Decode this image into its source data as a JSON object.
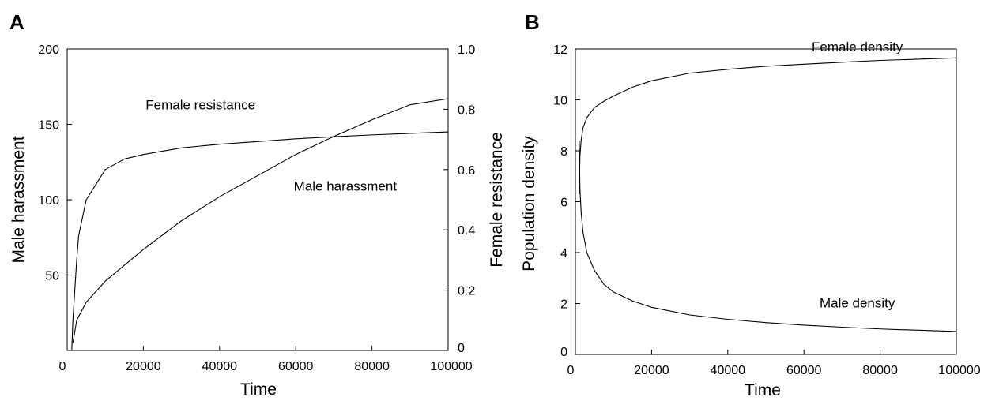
{
  "chart_data": [
    {
      "panel": "A",
      "type": "line",
      "xlabel": "Time",
      "ylabel": "Male harassment",
      "ylabel_right": "Female resistance",
      "xlim": [
        0,
        100000
      ],
      "ylim": [
        0,
        200
      ],
      "ylim_right": [
        0,
        1.0
      ],
      "x_ticks": [
        0,
        20000,
        40000,
        60000,
        80000,
        100000
      ],
      "y_ticks": [
        50,
        100,
        150,
        200
      ],
      "y_ticks_right": [
        0,
        0.2,
        0.4,
        0.6,
        0.8,
        1.0
      ],
      "x_tick_labels": [
        "0",
        "20000",
        "40000",
        "60000",
        "80000",
        "100000"
      ],
      "y_tick_labels": [
        "50",
        "100",
        "150",
        "200"
      ],
      "y_tick_labels_right": [
        "0",
        "0.2",
        "0.4",
        "0.6",
        "0.8",
        "1.0"
      ],
      "grid": false,
      "series": [
        {
          "name": "Male harassment",
          "axis": "left",
          "x": [
            1500,
            2500,
            5000,
            10000,
            20000,
            30000,
            40000,
            50000,
            60000,
            70000,
            80000,
            90000,
            100000
          ],
          "y": [
            5,
            20,
            32,
            46,
            67,
            86,
            102,
            116,
            130,
            142,
            153,
            163,
            167
          ]
        },
        {
          "name": "Female resistance",
          "axis": "right",
          "x": [
            1200,
            1500,
            2000,
            2500,
            3000,
            5000,
            10000,
            15000,
            20000,
            30000,
            40000,
            50000,
            60000,
            70000,
            80000,
            90000,
            100000
          ],
          "y": [
            0.0,
            0.1,
            0.2,
            0.3,
            0.38,
            0.5,
            0.6,
            0.635,
            0.65,
            0.672,
            0.684,
            0.693,
            0.702,
            0.709,
            0.715,
            0.72,
            0.725
          ]
        }
      ],
      "annotations": [
        {
          "text": "Female resistance",
          "x": 35000,
          "y": 160
        },
        {
          "text": "Male harassment",
          "x": 73000,
          "y": 106
        }
      ]
    },
    {
      "panel": "B",
      "type": "line",
      "xlabel": "Time",
      "ylabel": "Population density",
      "xlim": [
        0,
        100000
      ],
      "ylim": [
        0,
        12
      ],
      "x_ticks": [
        0,
        20000,
        40000,
        60000,
        80000,
        100000
      ],
      "y_ticks": [
        0,
        2,
        4,
        6,
        8,
        10,
        12
      ],
      "x_tick_labels": [
        "0",
        "20000",
        "40000",
        "60000",
        "80000",
        "100000"
      ],
      "y_tick_labels": [
        "0",
        "2",
        "4",
        "6",
        "8",
        "10",
        "12"
      ],
      "grid": false,
      "series": [
        {
          "name": "Female density",
          "x": [
            1000,
            1200,
            1500,
            2000,
            3000,
            5000,
            7500,
            10000,
            15000,
            20000,
            30000,
            40000,
            50000,
            60000,
            70000,
            80000,
            90000,
            100000
          ],
          "y": [
            6.3,
            7.8,
            8.4,
            8.9,
            9.3,
            9.7,
            9.95,
            10.15,
            10.5,
            10.75,
            11.05,
            11.2,
            11.32,
            11.4,
            11.48,
            11.55,
            11.6,
            11.65
          ]
        },
        {
          "name": "Male density",
          "x": [
            1000,
            1200,
            1500,
            2000,
            3000,
            5000,
            7500,
            10000,
            15000,
            20000,
            30000,
            40000,
            50000,
            60000,
            70000,
            80000,
            90000,
            100000
          ],
          "y": [
            8.4,
            6.5,
            5.6,
            4.8,
            4.0,
            3.3,
            2.75,
            2.45,
            2.1,
            1.85,
            1.55,
            1.38,
            1.25,
            1.15,
            1.07,
            1.0,
            0.95,
            0.9
          ]
        }
      ],
      "annotations": [
        {
          "text": "Female density",
          "x": 74000,
          "y": 11.9
        },
        {
          "text": "Male density",
          "x": 74000,
          "y": 1.85
        }
      ]
    }
  ]
}
